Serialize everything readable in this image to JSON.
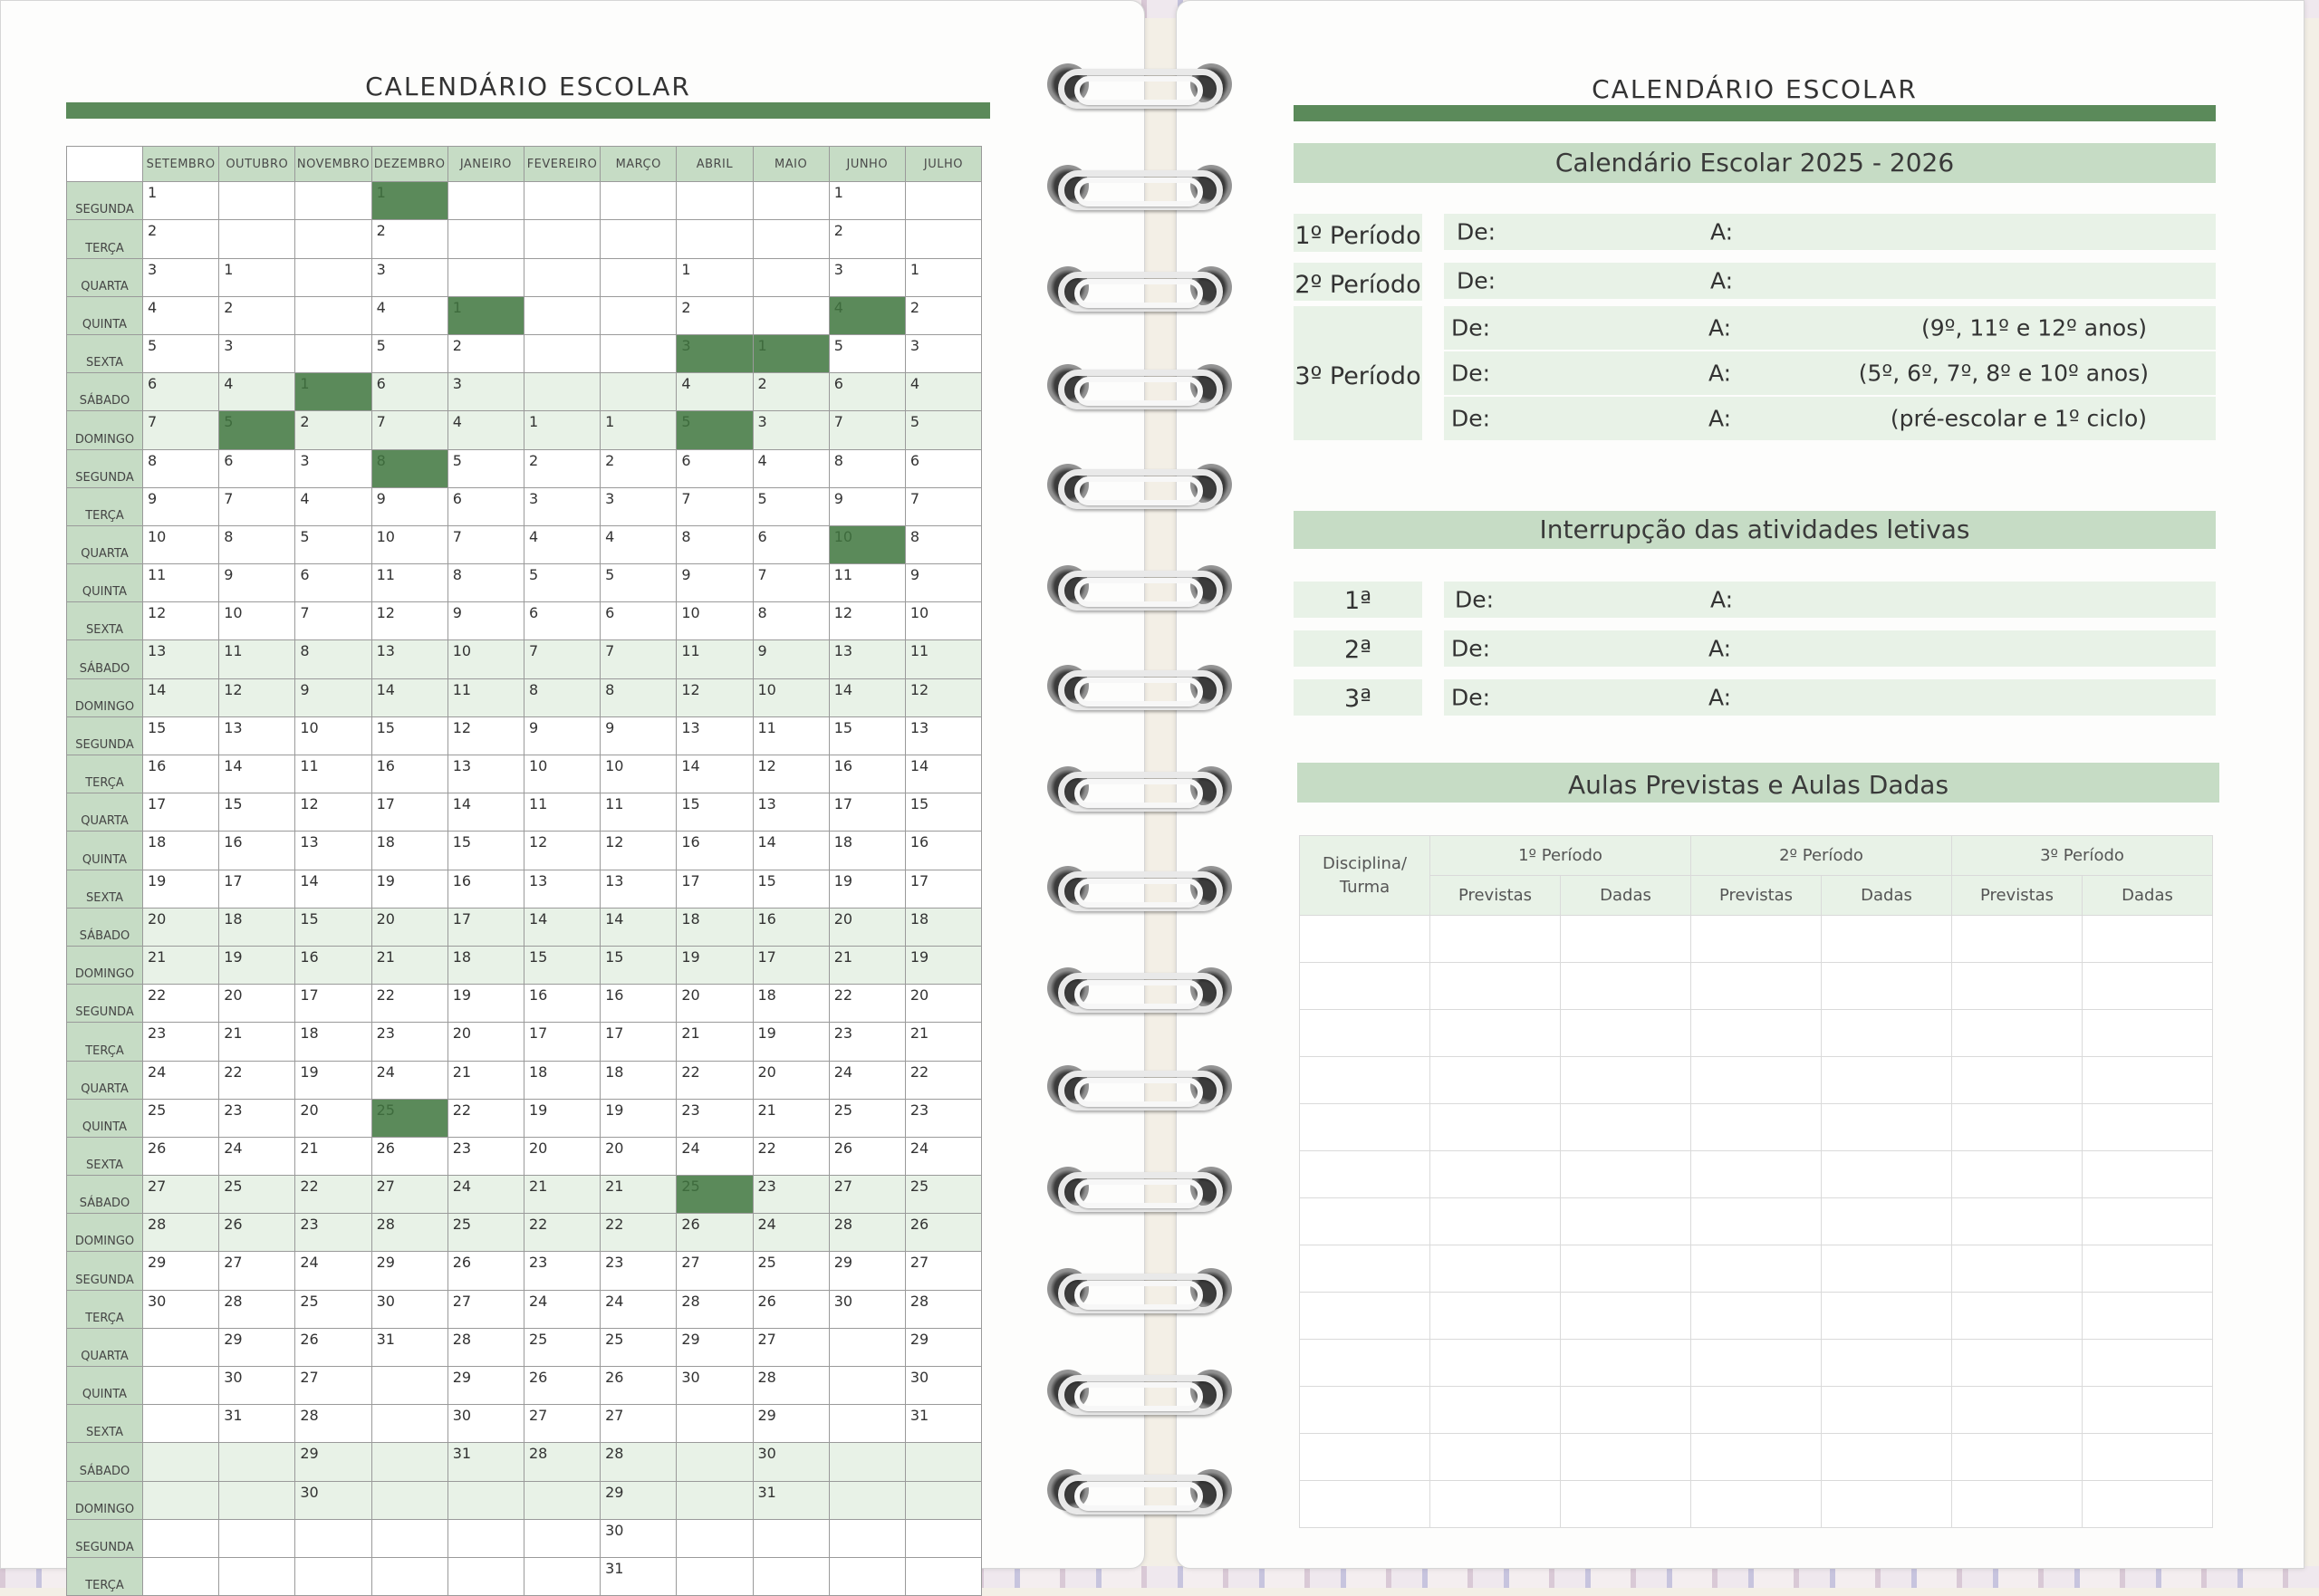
{
  "left_page": {
    "title": "CALENDÁRIO ESCOLAR",
    "months": [
      "SETEMBRO",
      "OUTUBRO",
      "NOVEMBRO",
      "DEZEMBRO",
      "JANEIRO",
      "FEVEREIRO",
      "MARÇO",
      "ABRIL",
      "MAIO",
      "JUNHO",
      "JULHO"
    ],
    "rows": [
      {
        "day": "SEGUNDA",
        "cells": [
          "1",
          "",
          "",
          "1",
          "",
          "",
          "",
          "",
          "",
          "1",
          ""
        ]
      },
      {
        "day": "TERÇA",
        "cells": [
          "2",
          "",
          "",
          "2",
          "",
          "",
          "",
          "",
          "",
          "2",
          ""
        ]
      },
      {
        "day": "QUARTA",
        "cells": [
          "3",
          "1",
          "",
          "3",
          "",
          "",
          "",
          "1",
          "",
          "3",
          "1"
        ]
      },
      {
        "day": "QUINTA",
        "cells": [
          "4",
          "2",
          "",
          "4",
          "1",
          "",
          "",
          "2",
          "",
          "4",
          "2"
        ]
      },
      {
        "day": "SEXTA",
        "cells": [
          "5",
          "3",
          "",
          "5",
          "2",
          "",
          "",
          "3",
          "1",
          "5",
          "3"
        ]
      },
      {
        "day": "SÁBADO",
        "cells": [
          "6",
          "4",
          "1",
          "6",
          "3",
          "",
          "",
          "4",
          "2",
          "6",
          "4"
        ]
      },
      {
        "day": "DOMINGO",
        "cells": [
          "7",
          "5",
          "2",
          "7",
          "4",
          "1",
          "1",
          "5",
          "3",
          "7",
          "5"
        ]
      },
      {
        "day": "SEGUNDA",
        "cells": [
          "8",
          "6",
          "3",
          "8",
          "5",
          "2",
          "2",
          "6",
          "4",
          "8",
          "6"
        ]
      },
      {
        "day": "TERÇA",
        "cells": [
          "9",
          "7",
          "4",
          "9",
          "6",
          "3",
          "3",
          "7",
          "5",
          "9",
          "7"
        ]
      },
      {
        "day": "QUARTA",
        "cells": [
          "10",
          "8",
          "5",
          "10",
          "7",
          "4",
          "4",
          "8",
          "6",
          "10",
          "8"
        ]
      },
      {
        "day": "QUINTA",
        "cells": [
          "11",
          "9",
          "6",
          "11",
          "8",
          "5",
          "5",
          "9",
          "7",
          "11",
          "9"
        ]
      },
      {
        "day": "SEXTA",
        "cells": [
          "12",
          "10",
          "7",
          "12",
          "9",
          "6",
          "6",
          "10",
          "8",
          "12",
          "10"
        ]
      },
      {
        "day": "SÁBADO",
        "cells": [
          "13",
          "11",
          "8",
          "13",
          "10",
          "7",
          "7",
          "11",
          "9",
          "13",
          "11"
        ]
      },
      {
        "day": "DOMINGO",
        "cells": [
          "14",
          "12",
          "9",
          "14",
          "11",
          "8",
          "8",
          "12",
          "10",
          "14",
          "12"
        ]
      },
      {
        "day": "SEGUNDA",
        "cells": [
          "15",
          "13",
          "10",
          "15",
          "12",
          "9",
          "9",
          "13",
          "11",
          "15",
          "13"
        ]
      },
      {
        "day": "TERÇA",
        "cells": [
          "16",
          "14",
          "11",
          "16",
          "13",
          "10",
          "10",
          "14",
          "12",
          "16",
          "14"
        ]
      },
      {
        "day": "QUARTA",
        "cells": [
          "17",
          "15",
          "12",
          "17",
          "14",
          "11",
          "11",
          "15",
          "13",
          "17",
          "15"
        ]
      },
      {
        "day": "QUINTA",
        "cells": [
          "18",
          "16",
          "13",
          "18",
          "15",
          "12",
          "12",
          "16",
          "14",
          "18",
          "16"
        ]
      },
      {
        "day": "SEXTA",
        "cells": [
          "19",
          "17",
          "14",
          "19",
          "16",
          "13",
          "13",
          "17",
          "15",
          "19",
          "17"
        ]
      },
      {
        "day": "SÁBADO",
        "cells": [
          "20",
          "18",
          "15",
          "20",
          "17",
          "14",
          "14",
          "18",
          "16",
          "20",
          "18"
        ]
      },
      {
        "day": "DOMINGO",
        "cells": [
          "21",
          "19",
          "16",
          "21",
          "18",
          "15",
          "15",
          "19",
          "17",
          "21",
          "19"
        ]
      },
      {
        "day": "SEGUNDA",
        "cells": [
          "22",
          "20",
          "17",
          "22",
          "19",
          "16",
          "16",
          "20",
          "18",
          "22",
          "20"
        ]
      },
      {
        "day": "TERÇA",
        "cells": [
          "23",
          "21",
          "18",
          "23",
          "20",
          "17",
          "17",
          "21",
          "19",
          "23",
          "21"
        ]
      },
      {
        "day": "QUARTA",
        "cells": [
          "24",
          "22",
          "19",
          "24",
          "21",
          "18",
          "18",
          "22",
          "20",
          "24",
          "22"
        ]
      },
      {
        "day": "QUINTA",
        "cells": [
          "25",
          "23",
          "20",
          "25",
          "22",
          "19",
          "19",
          "23",
          "21",
          "25",
          "23"
        ]
      },
      {
        "day": "SEXTA",
        "cells": [
          "26",
          "24",
          "21",
          "26",
          "23",
          "20",
          "20",
          "24",
          "22",
          "26",
          "24"
        ]
      },
      {
        "day": "SÁBADO",
        "cells": [
          "27",
          "25",
          "22",
          "27",
          "24",
          "21",
          "21",
          "25",
          "23",
          "27",
          "25"
        ]
      },
      {
        "day": "DOMINGO",
        "cells": [
          "28",
          "26",
          "23",
          "28",
          "25",
          "22",
          "22",
          "26",
          "24",
          "28",
          "26"
        ]
      },
      {
        "day": "SEGUNDA",
        "cells": [
          "29",
          "27",
          "24",
          "29",
          "26",
          "23",
          "23",
          "27",
          "25",
          "29",
          "27"
        ]
      },
      {
        "day": "TERÇA",
        "cells": [
          "30",
          "28",
          "25",
          "30",
          "27",
          "24",
          "24",
          "28",
          "26",
          "30",
          "28"
        ]
      },
      {
        "day": "QUARTA",
        "cells": [
          "",
          "29",
          "26",
          "31",
          "28",
          "25",
          "25",
          "29",
          "27",
          "",
          "29"
        ]
      },
      {
        "day": "QUINTA",
        "cells": [
          "",
          "30",
          "27",
          "",
          "29",
          "26",
          "26",
          "30",
          "28",
          "",
          "30"
        ]
      },
      {
        "day": "SEXTA",
        "cells": [
          "",
          "31",
          "28",
          "",
          "30",
          "27",
          "27",
          "",
          "29",
          "",
          "31"
        ]
      },
      {
        "day": "SÁBADO",
        "cells": [
          "",
          "",
          "29",
          "",
          "31",
          "28",
          "28",
          "",
          "30",
          "",
          ""
        ]
      },
      {
        "day": "DOMINGO",
        "cells": [
          "",
          "",
          "30",
          "",
          "",
          "",
          "29",
          "",
          "31",
          "",
          ""
        ]
      },
      {
        "day": "SEGUNDA",
        "cells": [
          "",
          "",
          "",
          "",
          "",
          "",
          "30",
          "",
          "",
          "",
          ""
        ]
      },
      {
        "day": "TERÇA",
        "cells": [
          "",
          "",
          "",
          "",
          "",
          "",
          "31",
          "",
          "",
          "",
          ""
        ]
      }
    ],
    "highlights": [
      [
        0,
        3
      ],
      [
        3,
        4
      ],
      [
        3,
        9
      ],
      [
        4,
        7
      ],
      [
        4,
        8
      ],
      [
        5,
        2
      ],
      [
        6,
        1
      ],
      [
        6,
        7
      ],
      [
        7,
        3
      ],
      [
        9,
        9
      ],
      [
        24,
        3
      ],
      [
        26,
        7
      ]
    ],
    "highlight_color": "#5b8a5a"
  },
  "right_page": {
    "title": "CALENDÁRIO ESCOLAR",
    "calendar_header": "Calendário Escolar 2025 - 2026",
    "periods": [
      {
        "label": "1º Período",
        "lines": [
          {
            "de": "De:",
            "a": "A:",
            "note": ""
          }
        ]
      },
      {
        "label": "2º Período",
        "lines": [
          {
            "de": "De:",
            "a": "A:",
            "note": ""
          }
        ]
      },
      {
        "label": "3º Período",
        "lines": [
          {
            "de": "De:",
            "a": "A:",
            "note": "(9º, 11º e 12º anos)"
          },
          {
            "de": "De:",
            "a": "A:",
            "note": "(5º, 6º, 7º, 8º e 10º anos)"
          },
          {
            "de": "De:",
            "a": "A:",
            "note": "(pré-escolar e 1º ciclo)"
          }
        ]
      }
    ],
    "interruptions_header": "Interrupção das atividades letivas",
    "interruptions": [
      {
        "label": "1ª",
        "de": "De:",
        "a": "A:"
      },
      {
        "label": "2ª",
        "de": "De:",
        "a": "A:"
      },
      {
        "label": "3ª",
        "de": "De:",
        "a": "A:"
      }
    ],
    "aulas_header": "Aulas Previstas e Aulas Dadas",
    "aulas_table": {
      "first_col": "Disciplina/ Turma",
      "periods": [
        "1º Período",
        "2º Período",
        "3º Período"
      ],
      "sub": [
        "Previstas",
        "Dadas"
      ],
      "empty_rows": 13
    }
  },
  "colors": {
    "accent_green": "#5b8a5a",
    "light_green": "#c6dcc5",
    "pale_green": "#e8f2e7"
  }
}
